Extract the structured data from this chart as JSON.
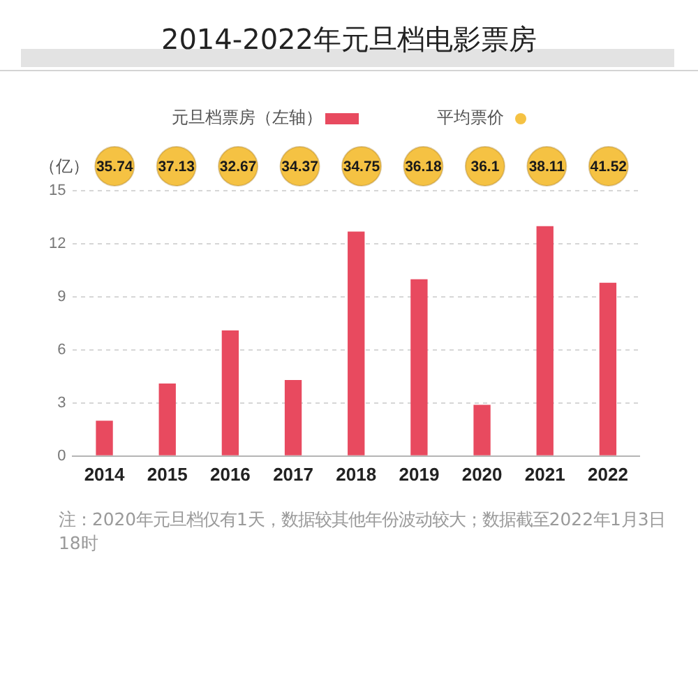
{
  "chart_data": [
    {
      "type": "other",
      "title": "2014-2022年元旦档电影票房",
      "categories": [
        "2014",
        "2015",
        "2016",
        "2017",
        "2018",
        "2019",
        "2020",
        "2021",
        "2022"
      ],
      "series": [
        {
          "name": "平均票价",
          "color": "#f5c243",
          "values": [
            35.74,
            37.13,
            32.67,
            34.37,
            34.75,
            36.18,
            36.1,
            38.11,
            41.52
          ]
        }
      ],
      "data_labels": true,
      "legend": "top"
    },
    {
      "type": "bar",
      "ylabel": "（亿）",
      "categories": [
        "2014",
        "2015",
        "2016",
        "2017",
        "2018",
        "2019",
        "2020",
        "2021",
        "2022"
      ],
      "series": [
        {
          "name": "元旦档票房（左轴）",
          "color": "#e84a5f",
          "values": [
            2.0,
            4.1,
            7.1,
            4.3,
            12.7,
            10.0,
            2.9,
            13.0,
            9.8
          ]
        }
      ],
      "ylim": [
        0,
        15
      ],
      "yticks": [
        0,
        3,
        6,
        9,
        12,
        15
      ],
      "grid": "y",
      "legend": "top",
      "annotations": [
        "注：2020年元旦档仅有1天，数据较其他年份波动较大；数据截至2022年1月3日18时"
      ]
    }
  ]
}
